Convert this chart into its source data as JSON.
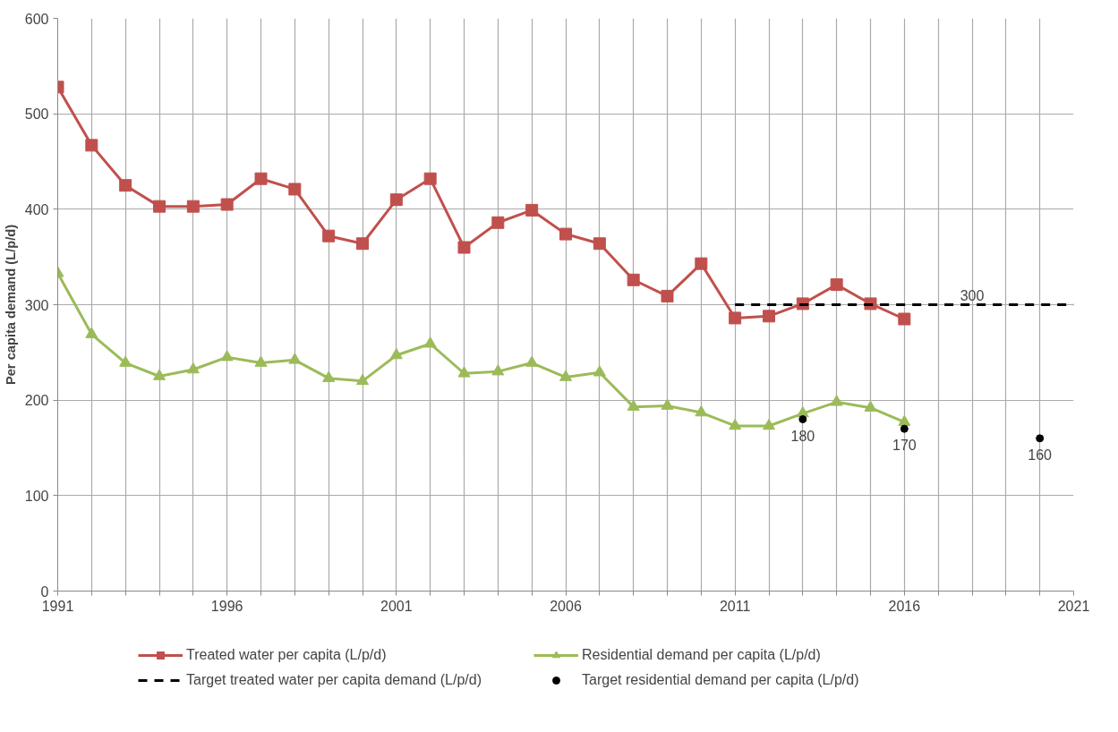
{
  "chart_data": {
    "type": "line",
    "ylabel": "Per capita demand (L/p/d)",
    "xlim": [
      1991,
      2021
    ],
    "ylim": [
      0,
      600
    ],
    "xticks": [
      1991,
      {
        "value": 1992,
        "label": null
      },
      {
        "value": 1993,
        "label": null
      },
      {
        "value": 1994,
        "label": null
      },
      {
        "value": 1995,
        "label": null
      },
      1996,
      {
        "value": 1997,
        "label": null
      },
      {
        "value": 1998,
        "label": null
      },
      {
        "value": 1999,
        "label": null
      },
      {
        "value": 2000,
        "label": null
      },
      2001,
      {
        "value": 2002,
        "label": null
      },
      {
        "value": 2003,
        "label": null
      },
      {
        "value": 2004,
        "label": null
      },
      {
        "value": 2005,
        "label": null
      },
      2006,
      {
        "value": 2007,
        "label": null
      },
      {
        "value": 2008,
        "label": null
      },
      {
        "value": 2009,
        "label": null
      },
      {
        "value": 2010,
        "label": null
      },
      2011,
      {
        "value": 2012,
        "label": null
      },
      {
        "value": 2013,
        "label": null
      },
      {
        "value": 2014,
        "label": null
      },
      {
        "value": 2015,
        "label": null
      },
      2016,
      {
        "value": 2017,
        "label": null
      },
      {
        "value": 2018,
        "label": null
      },
      {
        "value": 2019,
        "label": null
      },
      {
        "value": 2020,
        "label": null
      },
      2021
    ],
    "yticks": [
      0,
      100,
      200,
      300,
      400,
      500,
      600
    ],
    "grid": true,
    "legend": "bottom",
    "x": [
      1991,
      1992,
      1993,
      1994,
      1995,
      1996,
      1997,
      1998,
      1999,
      2000,
      2001,
      2002,
      2003,
      2004,
      2005,
      2006,
      2007,
      2008,
      2009,
      2010,
      2011,
      2012,
      2013,
      2014,
      2015,
      2016
    ],
    "series": [
      {
        "name": "Treated water per capita (L/p/d)",
        "color": "#c0504d",
        "type": "line",
        "marker": "square",
        "line_style": "solid",
        "values": [
          528,
          467,
          425,
          403,
          403,
          405,
          432,
          421,
          372,
          364,
          410,
          432,
          360,
          386,
          399,
          374,
          364,
          326,
          309,
          343,
          286,
          288,
          301,
          321,
          301,
          285
        ]
      },
      {
        "name": "Target treated water per capita demand (L/p/d)",
        "color": "#000000",
        "type": "line",
        "marker": "none",
        "line_style": "dashed",
        "x": [
          2011,
          2021
        ],
        "values": [
          300,
          300
        ]
      },
      {
        "name": "Residential demand per capita (L/p/d)",
        "color": "#9bbb59",
        "type": "line",
        "marker": "triangle",
        "line_style": "solid",
        "values": [
          333,
          269,
          239,
          225,
          232,
          245,
          239,
          242,
          223,
          220,
          247,
          259,
          228,
          230,
          239,
          224,
          229,
          193,
          194,
          187,
          173,
          173,
          186,
          198,
          192,
          177
        ]
      },
      {
        "name": "Target residential demand per capita (L/p/d)",
        "color": "#000000",
        "type": "scatter",
        "marker": "circle",
        "x": [
          2013,
          2016,
          2020
        ],
        "values": [
          180,
          170,
          160
        ],
        "value_labels": [
          "180",
          "170",
          "160"
        ]
      }
    ],
    "annotations": [
      {
        "text": "300",
        "x": 2018,
        "y": 300
      }
    ]
  }
}
